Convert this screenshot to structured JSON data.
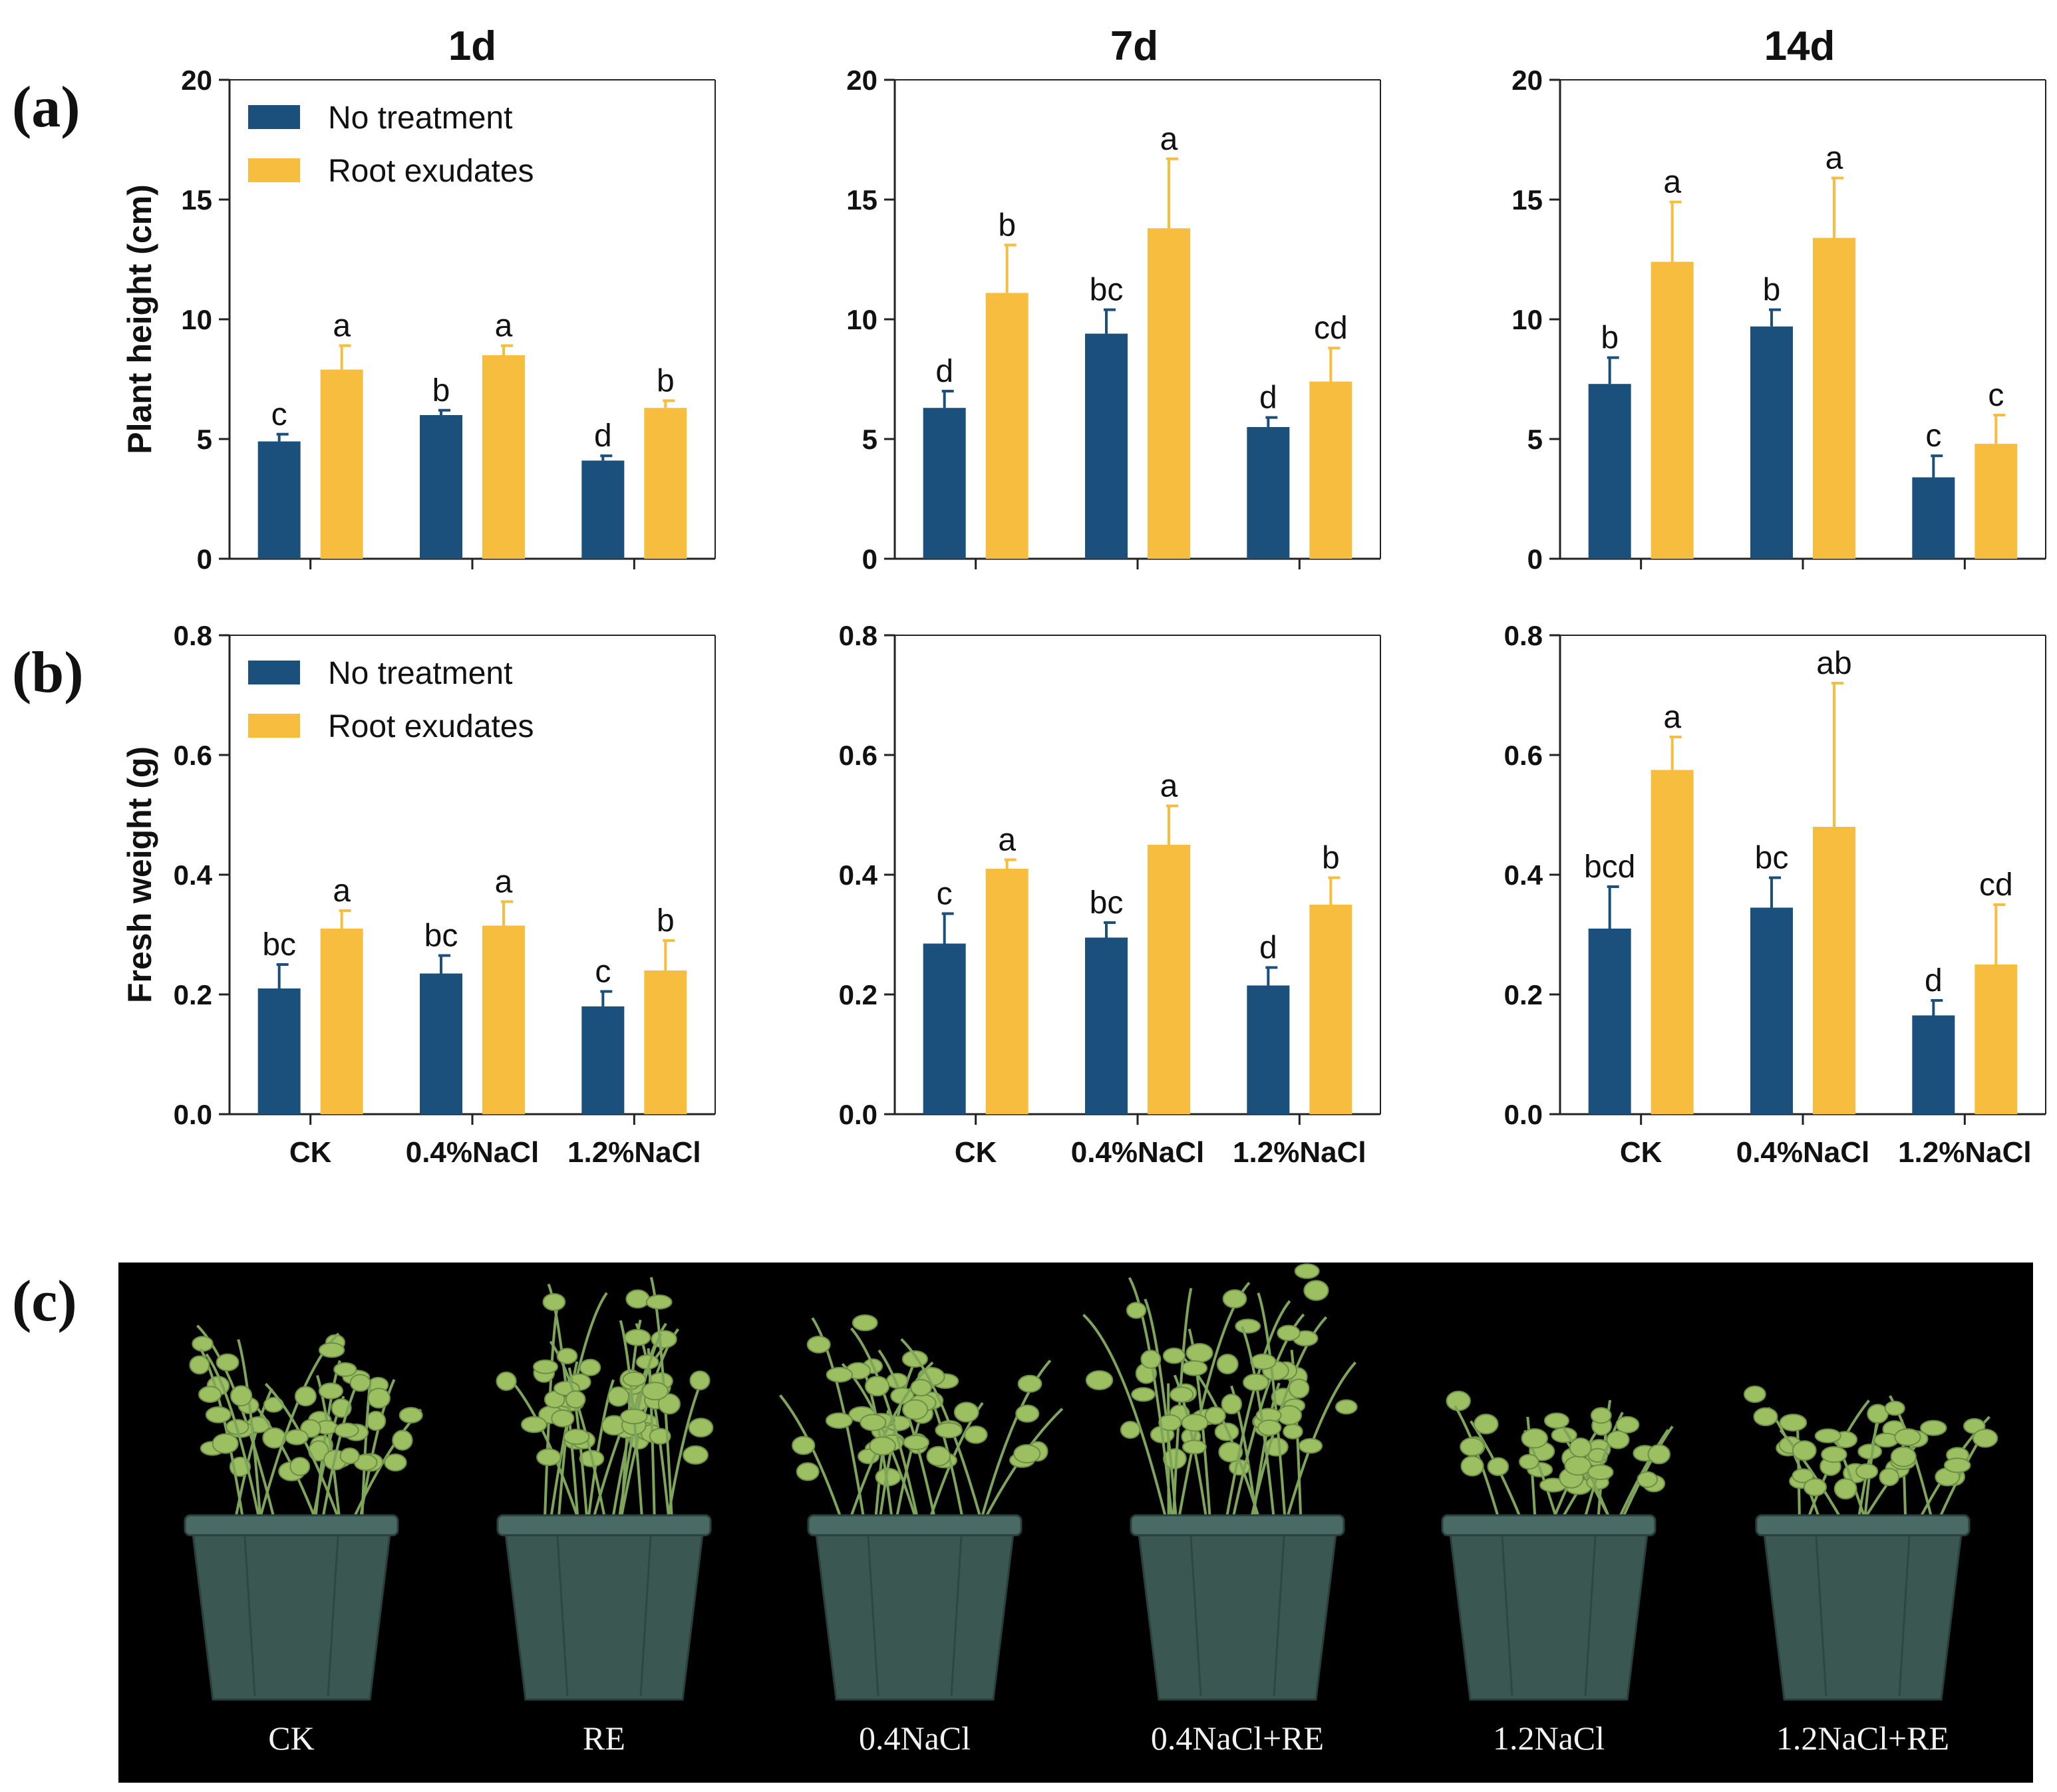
{
  "panel_labels": {
    "a": "(a)",
    "b": "(b)",
    "c": "(c)"
  },
  "col_titles": [
    "1d",
    "7d",
    "14d"
  ],
  "colors": {
    "no_treatment": "#1b4f7c",
    "root_exudates": "#f7bd3f",
    "photo_bg": "#000000",
    "pot": "#3a5752",
    "plant": "#9cbf62"
  },
  "legend": [
    "No treatment",
    "Root exudates"
  ],
  "chart_data": [
    {
      "type": "bar",
      "panel": "a",
      "title": "1d",
      "ylabel": "Plant height (cm)",
      "ylim": [
        0,
        20
      ],
      "yticks": [
        "0",
        "5",
        "10",
        "15",
        "20"
      ],
      "categories": [
        "CK",
        "0.4%NaCl",
        "1.2%NaCl"
      ],
      "show_xlabels": false,
      "legend": "top-left",
      "series": [
        {
          "name": "No treatment",
          "values": [
            4.9,
            6.0,
            4.1
          ],
          "errors": [
            0.3,
            0.2,
            0.2
          ],
          "letters": [
            "c",
            "b",
            "d"
          ]
        },
        {
          "name": "Root exudates",
          "values": [
            7.9,
            8.5,
            6.3
          ],
          "errors": [
            1.0,
            0.4,
            0.3
          ],
          "letters": [
            "a",
            "a",
            "b"
          ]
        }
      ]
    },
    {
      "type": "bar",
      "panel": "a",
      "title": "7d",
      "ylabel": "",
      "ylim": [
        0,
        20
      ],
      "yticks": [
        "0",
        "5",
        "10",
        "15",
        "20"
      ],
      "categories": [
        "CK",
        "0.4%NaCl",
        "1.2%NaCl"
      ],
      "show_xlabels": false,
      "legend": "none",
      "series": [
        {
          "name": "No treatment",
          "values": [
            6.3,
            9.4,
            5.5
          ],
          "errors": [
            0.7,
            1.0,
            0.4
          ],
          "letters": [
            "d",
            "bc",
            "d"
          ]
        },
        {
          "name": "Root exudates",
          "values": [
            11.1,
            13.8,
            7.4
          ],
          "errors": [
            2.0,
            2.9,
            1.4
          ],
          "letters": [
            "b",
            "a",
            "cd"
          ]
        }
      ]
    },
    {
      "type": "bar",
      "panel": "a",
      "title": "14d",
      "ylabel": "",
      "ylim": [
        0,
        20
      ],
      "yticks": [
        "0",
        "5",
        "10",
        "15",
        "20"
      ],
      "categories": [
        "CK",
        "0.4%NaCl",
        "1.2%NaCl"
      ],
      "show_xlabels": false,
      "legend": "none",
      "series": [
        {
          "name": "No treatment",
          "values": [
            7.3,
            9.7,
            3.4
          ],
          "errors": [
            1.1,
            0.7,
            0.9
          ],
          "letters": [
            "b",
            "b",
            "c"
          ]
        },
        {
          "name": "Root exudates",
          "values": [
            12.4,
            13.4,
            4.8
          ],
          "errors": [
            2.5,
            2.5,
            1.2
          ],
          "letters": [
            "a",
            "a",
            "c"
          ]
        }
      ]
    },
    {
      "type": "bar",
      "panel": "b",
      "title": "",
      "ylabel": "Fresh weight (g)",
      "ylim": [
        0,
        0.8
      ],
      "yticks": [
        "0.0",
        "0.2",
        "0.4",
        "0.6",
        "0.8"
      ],
      "categories": [
        "CK",
        "0.4%NaCl",
        "1.2%NaCl"
      ],
      "show_xlabels": true,
      "legend": "top-left",
      "series": [
        {
          "name": "No treatment",
          "values": [
            0.21,
            0.235,
            0.18
          ],
          "errors": [
            0.04,
            0.03,
            0.025
          ],
          "letters": [
            "bc",
            "bc",
            "c"
          ]
        },
        {
          "name": "Root exudates",
          "values": [
            0.31,
            0.315,
            0.24
          ],
          "errors": [
            0.03,
            0.04,
            0.05
          ],
          "letters": [
            "a",
            "a",
            "b"
          ]
        }
      ]
    },
    {
      "type": "bar",
      "panel": "b",
      "title": "",
      "ylabel": "",
      "ylim": [
        0,
        0.8
      ],
      "yticks": [
        "0.0",
        "0.2",
        "0.4",
        "0.6",
        "0.8"
      ],
      "categories": [
        "CK",
        "0.4%NaCl",
        "1.2%NaCl"
      ],
      "show_xlabels": true,
      "legend": "none",
      "series": [
        {
          "name": "No treatment",
          "values": [
            0.285,
            0.295,
            0.215
          ],
          "errors": [
            0.05,
            0.025,
            0.03
          ],
          "letters": [
            "c",
            "bc",
            "d"
          ]
        },
        {
          "name": "Root exudates",
          "values": [
            0.41,
            0.45,
            0.35
          ],
          "errors": [
            0.015,
            0.065,
            0.045
          ],
          "letters": [
            "a",
            "a",
            "b"
          ]
        }
      ]
    },
    {
      "type": "bar",
      "panel": "b",
      "title": "",
      "ylabel": "",
      "ylim": [
        0,
        0.8
      ],
      "yticks": [
        "0.0",
        "0.2",
        "0.4",
        "0.6",
        "0.8"
      ],
      "categories": [
        "CK",
        "0.4%NaCl",
        "1.2%NaCl"
      ],
      "show_xlabels": true,
      "legend": "none",
      "series": [
        {
          "name": "No treatment",
          "values": [
            0.31,
            0.345,
            0.165
          ],
          "errors": [
            0.07,
            0.05,
            0.025
          ],
          "letters": [
            "bcd",
            "bc",
            "d"
          ]
        },
        {
          "name": "Root exudates",
          "values": [
            0.575,
            0.48,
            0.25
          ],
          "errors": [
            0.055,
            0.24,
            0.1
          ],
          "letters": [
            "a",
            "ab",
            "cd"
          ]
        }
      ]
    }
  ],
  "photo": {
    "labels": [
      "CK",
      "RE",
      "0.4NaCl",
      "0.4NaCl+RE",
      "1.2NaCl",
      "1.2NaCl+RE"
    ],
    "growth": [
      0.6,
      1.0,
      0.65,
      0.95,
      0.25,
      0.3
    ]
  }
}
